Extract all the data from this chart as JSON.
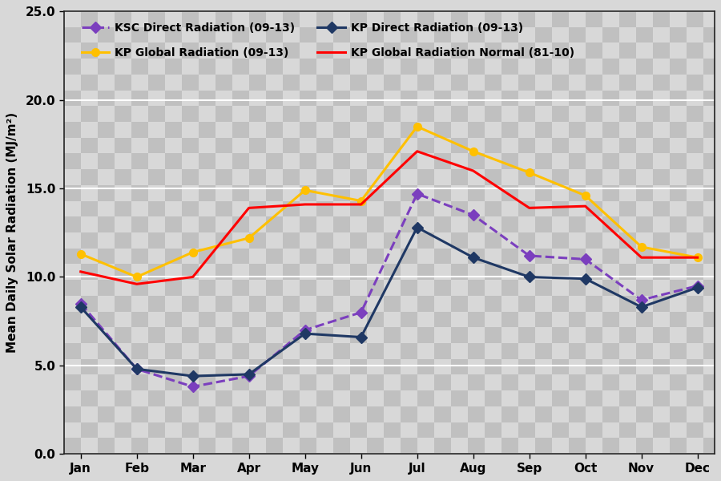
{
  "months": [
    "Jan",
    "Feb",
    "Mar",
    "Apr",
    "May",
    "Jun",
    "Jul",
    "Aug",
    "Sep",
    "Oct",
    "Nov",
    "Dec"
  ],
  "ksc_direct": [
    8.5,
    4.8,
    3.8,
    4.4,
    7.0,
    8.0,
    14.7,
    13.5,
    11.2,
    11.0,
    8.7,
    9.5
  ],
  "kp_direct": [
    8.3,
    4.8,
    4.4,
    4.5,
    6.8,
    6.6,
    12.8,
    11.1,
    10.0,
    9.9,
    8.3,
    9.4
  ],
  "kp_global": [
    11.3,
    10.0,
    11.4,
    12.2,
    14.9,
    14.3,
    18.5,
    17.1,
    15.9,
    14.6,
    11.7,
    11.1
  ],
  "kp_normal": [
    10.3,
    9.6,
    10.0,
    13.9,
    14.1,
    14.1,
    17.1,
    16.0,
    13.9,
    14.0,
    11.1,
    11.1
  ],
  "ksc_direct_color": "#7B3FBE",
  "kp_direct_color": "#1F3864",
  "kp_global_color": "#FFC000",
  "kp_normal_color": "#FF0000",
  "ylabel": "Mean Daily Solar Radiation (MJ/m²)",
  "ylim": [
    0.0,
    25.0
  ],
  "yticks": [
    0.0,
    5.0,
    10.0,
    15.0,
    20.0,
    25.0
  ],
  "legend_ksc_direct": "KSC Direct Radiation (09-13)",
  "legend_kp_direct": "KP Direct Radiation (09-13)",
  "legend_kp_global": "KP Global Radiation (09-13)",
  "legend_kp_normal": "KP Global Radiation Normal (81-10)",
  "checker_light": "#d8d8d8",
  "checker_dark": "#c0c0c0",
  "grid_color": "#ffffff",
  "axis_bg": "#cccccc"
}
